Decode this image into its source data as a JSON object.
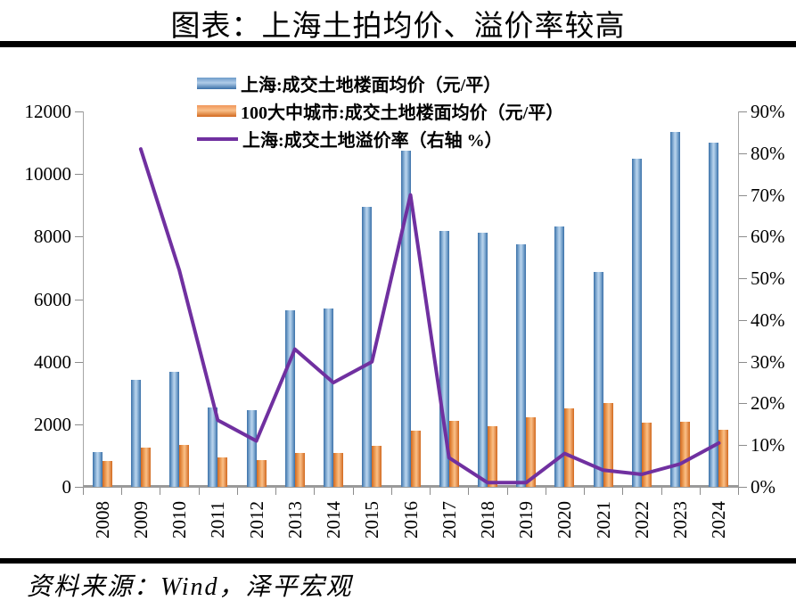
{
  "title": "图表：上海土拍均价、溢价率较高",
  "source": "资料来源：Wind，泽平宏观",
  "legend": [
    {
      "label": "上海:成交土地楼面均价（元/平）",
      "swatch": "bar-blue"
    },
    {
      "label": "100大中城市:成交土地楼面均价（元/平）",
      "swatch": "bar-orange"
    },
    {
      "label": "上海:成交土地溢价率（右轴 %）",
      "swatch": "line-purple"
    }
  ],
  "colors": {
    "bar_shanghai": "#4a7ebb",
    "bar_100city": "#ED7D31",
    "premium_line": "#7030A0",
    "axis_gray": "#a6a6a6",
    "text": "#000000"
  },
  "chart_data": {
    "type": "bar",
    "subtype": "grouped bars with secondary-axis line",
    "categories": [
      "2008",
      "2009",
      "2010",
      "2011",
      "2012",
      "2013",
      "2014",
      "2015",
      "2016",
      "2017",
      "2018",
      "2019",
      "2020",
      "2021",
      "2022",
      "2023",
      "2024"
    ],
    "series": [
      {
        "name": "上海:成交土地楼面均价（元/平）",
        "type": "bar",
        "axis": "left",
        "color": "#4a7ebb",
        "values": [
          1100,
          3430,
          3680,
          2550,
          2460,
          5630,
          5710,
          8960,
          10740,
          8170,
          8110,
          7760,
          8310,
          6860,
          10500,
          11340,
          11010
        ]
      },
      {
        "name": "100大中城市:成交土地楼面均价（元/平）",
        "type": "bar",
        "axis": "left",
        "color": "#ED7D31",
        "values": [
          830,
          1250,
          1340,
          940,
          860,
          1080,
          1080,
          1300,
          1790,
          2100,
          1930,
          2220,
          2500,
          2680,
          2050,
          2080,
          1820
        ]
      },
      {
        "name": "上海:成交土地溢价率（右轴 %）",
        "type": "line",
        "axis": "right",
        "color": "#7030A0",
        "values": [
          null,
          81,
          52,
          16,
          11,
          33,
          25,
          30,
          70,
          7,
          1,
          1,
          8,
          4,
          3,
          5.5,
          10.5
        ]
      }
    ],
    "left_axis": {
      "min": 0,
      "max": 12000,
      "step": 2000,
      "ticks": [
        "0",
        "2000",
        "4000",
        "6000",
        "8000",
        "10000",
        "12000"
      ]
    },
    "right_axis": {
      "min": 0,
      "max": 90,
      "step": 10,
      "ticks": [
        "0%",
        "10%",
        "20%",
        "30%",
        "40%",
        "50%",
        "60%",
        "70%",
        "80%",
        "90%"
      ]
    },
    "grid": false,
    "legend_position": "top"
  }
}
